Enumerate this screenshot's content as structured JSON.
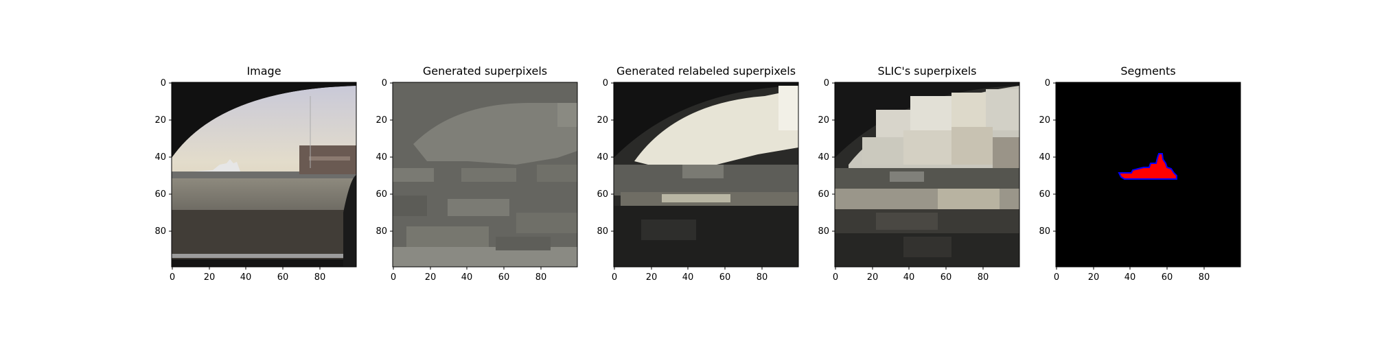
{
  "figure": {
    "panels": [
      {
        "id": "image",
        "title": "Image",
        "x_ticks": [
          "0",
          "20",
          "40",
          "60",
          "80"
        ],
        "y_ticks": [
          "0",
          "20",
          "40",
          "60",
          "80"
        ]
      },
      {
        "id": "generated-superpixels",
        "title": "Generated superpixels",
        "x_ticks": [
          "0",
          "20",
          "40",
          "60",
          "80"
        ],
        "y_ticks": [
          "0",
          "20",
          "40",
          "60",
          "80"
        ]
      },
      {
        "id": "generated-relabeled-superpixels",
        "title": "Generated relabeled superpixels",
        "x_ticks": [
          "0",
          "20",
          "40",
          "60",
          "80"
        ],
        "y_ticks": [
          "0",
          "20",
          "40",
          "60",
          "80"
        ]
      },
      {
        "id": "slic-superpixels",
        "title": "SLIC's superpixels",
        "x_ticks": [
          "0",
          "20",
          "40",
          "60",
          "80"
        ],
        "y_ticks": [
          "0",
          "20",
          "40",
          "60",
          "80"
        ]
      },
      {
        "id": "segments",
        "title": "Segments",
        "x_ticks": [
          "0",
          "20",
          "40",
          "60",
          "80"
        ],
        "y_ticks": [
          "0",
          "20",
          "40",
          "60",
          "80"
        ]
      }
    ]
  },
  "colors": {
    "segment_fill": "#ff0000",
    "segment_outline": "#0000ff",
    "axis": "#000000"
  }
}
